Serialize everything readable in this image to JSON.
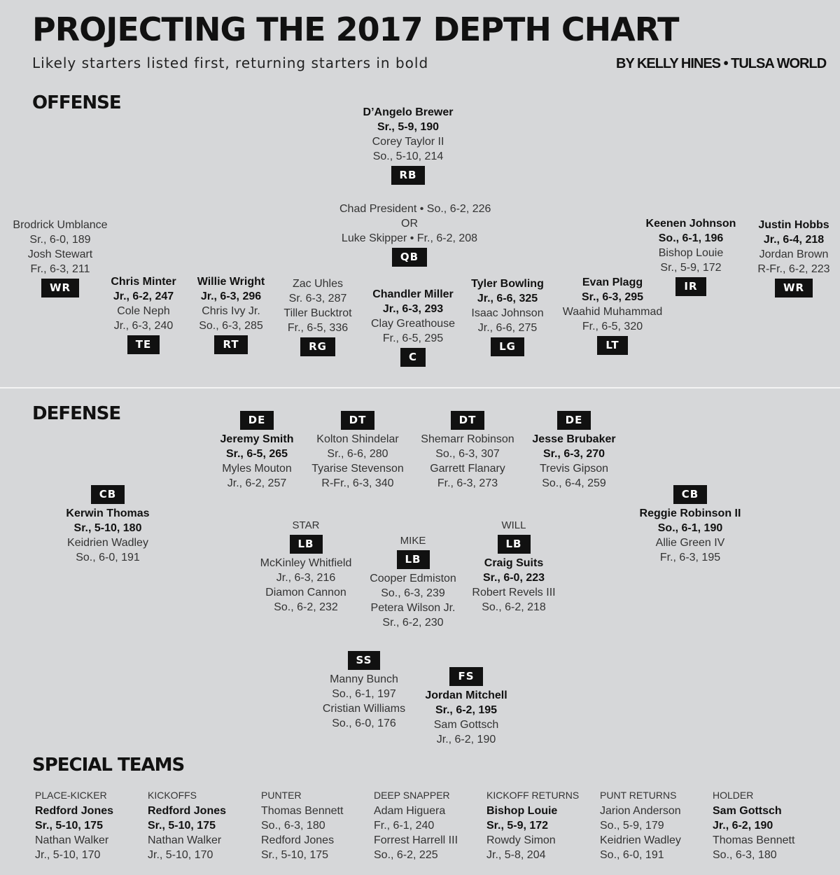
{
  "header": {
    "title": "PROJECTING THE 2017 DEPTH CHART",
    "subtitle": "Likely starters listed first, returning starters in bold",
    "byline": "BY KELLY HINES • TULSA WORLD"
  },
  "sections": {
    "offense": "OFFENSE",
    "defense": "DEFENSE",
    "special_teams": "SPECIAL TEAMS"
  },
  "offense": {
    "rb": {
      "label": "RB",
      "lines": [
        "D’Angelo Brewer",
        "Sr., 5-9, 190",
        "Corey Taylor II",
        "So., 5-10, 214"
      ],
      "bold": [
        0,
        1
      ]
    },
    "qb": {
      "label": "QB",
      "lines": [
        "Chad President • So., 6-2, 226",
        "OR",
        "Luke Skipper • Fr., 6-2, 208"
      ],
      "bold": []
    },
    "wr_left": {
      "label": "WR",
      "lines": [
        "Brodrick Umblance",
        "Sr., 6-0, 189",
        "Josh Stewart",
        "Fr., 6-3, 211"
      ],
      "bold": []
    },
    "te": {
      "label": "TE",
      "lines": [
        "Chris Minter",
        "Jr., 6-2, 247",
        "Cole Neph",
        "Jr., 6-3, 240"
      ],
      "bold": [
        0,
        1
      ]
    },
    "rt": {
      "label": "RT",
      "lines": [
        "Willie Wright",
        "Jr., 6-3, 296",
        "Chris Ivy Jr.",
        "So., 6-3, 285"
      ],
      "bold": [
        0,
        1
      ]
    },
    "rg": {
      "label": "RG",
      "lines": [
        "Zac Uhles",
        "Sr. 6-3, 287",
        "Tiller Bucktrot",
        "Fr., 6-5, 336"
      ],
      "bold": []
    },
    "c": {
      "label": "C",
      "lines": [
        "Chandler Miller",
        "Jr., 6-3, 293",
        "Clay Greathouse",
        "Fr., 6-5, 295"
      ],
      "bold": [
        0,
        1
      ]
    },
    "lg": {
      "label": "LG",
      "lines": [
        "Tyler Bowling",
        "Jr., 6-6, 325",
        "Isaac Johnson",
        "Jr., 6-6, 275"
      ],
      "bold": [
        0,
        1
      ]
    },
    "lt": {
      "label": "LT",
      "lines": [
        "Evan Plagg",
        "Sr., 6-3, 295",
        "Waahid Muhammad",
        "Fr., 6-5, 320"
      ],
      "bold": [
        0,
        1
      ]
    },
    "ir": {
      "label": "IR",
      "lines": [
        "Keenen Johnson",
        "So., 6-1, 196",
        "Bishop Louie",
        "Sr., 5-9, 172"
      ],
      "bold": [
        0,
        1
      ]
    },
    "wr_right": {
      "label": "WR",
      "lines": [
        "Justin Hobbs",
        "Jr., 6-4, 218",
        "Jordan Brown",
        "R-Fr., 6-2, 223"
      ],
      "bold": [
        0,
        1
      ]
    }
  },
  "defense": {
    "de_left": {
      "label": "DE",
      "lines": [
        "Jeremy Smith",
        "Sr., 6-5, 265",
        "Myles Mouton",
        "Jr., 6-2, 257"
      ],
      "bold": [
        0,
        1
      ]
    },
    "dt_left": {
      "label": "DT",
      "lines": [
        "Kolton Shindelar",
        "Sr., 6-6, 280",
        "Tyarise Stevenson",
        "R-Fr., 6-3, 340"
      ],
      "bold": []
    },
    "dt_right": {
      "label": "DT",
      "lines": [
        "Shemarr Robinson",
        "So., 6-3, 307",
        "Garrett Flanary",
        "Fr., 6-3, 273"
      ],
      "bold": []
    },
    "de_right": {
      "label": "DE",
      "lines": [
        "Jesse Brubaker",
        "Sr., 6-3, 270",
        "Trevis Gipson",
        "So., 6-4, 259"
      ],
      "bold": [
        0,
        1
      ]
    },
    "cb_left": {
      "label": "CB",
      "lines": [
        "Kerwin Thomas",
        "Sr., 5-10, 180",
        "Keidrien Wadley",
        "So., 6-0, 191"
      ],
      "bold": [
        0,
        1
      ]
    },
    "cb_right": {
      "label": "CB",
      "lines": [
        "Reggie Robinson II",
        "So., 6-1, 190",
        "Allie Green IV",
        "Fr., 6-3, 195"
      ],
      "bold": [
        0,
        1
      ]
    },
    "lb_star": {
      "label": "LB",
      "sublabel": "STAR",
      "lines": [
        "McKinley Whitfield",
        "Jr., 6-3, 216",
        "Diamon Cannon",
        "So., 6-2, 232"
      ],
      "bold": []
    },
    "lb_mike": {
      "label": "LB",
      "sublabel": "MIKE",
      "lines": [
        "Cooper Edmiston",
        "So., 6-3, 239",
        "Petera Wilson Jr.",
        "Sr., 6-2, 230"
      ],
      "bold": []
    },
    "lb_will": {
      "label": "LB",
      "sublabel": "WILL",
      "lines": [
        "Craig Suits",
        "Sr., 6-0, 223",
        "Robert Revels III",
        "So., 6-2, 218"
      ],
      "bold": [
        0,
        1
      ]
    },
    "ss": {
      "label": "SS",
      "lines": [
        "Manny Bunch",
        "So., 6-1, 197",
        "Cristian Williams",
        "So., 6-0, 176"
      ],
      "bold": []
    },
    "fs": {
      "label": "FS",
      "lines": [
        "Jordan Mitchell",
        "Sr., 6-2, 195",
        "Sam Gottsch",
        "Jr., 6-2, 190"
      ],
      "bold": [
        0,
        1
      ]
    }
  },
  "special_teams": [
    {
      "header": "PLACE-KICKER",
      "lines": [
        "Redford Jones",
        "Sr., 5-10, 175",
        "Nathan Walker",
        "Jr., 5-10, 170"
      ],
      "bold": [
        0,
        1
      ]
    },
    {
      "header": "KICKOFFS",
      "lines": [
        "Redford Jones",
        "Sr., 5-10, 175",
        "Nathan Walker",
        "Jr., 5-10, 170"
      ],
      "bold": [
        0,
        1
      ]
    },
    {
      "header": "PUNTER",
      "lines": [
        "Thomas Bennett",
        "So., 6-3, 180",
        "Redford Jones",
        "Sr., 5-10, 175"
      ],
      "bold": []
    },
    {
      "header": "DEEP SNAPPER",
      "lines": [
        "Adam Higuera",
        "Fr., 6-1, 240",
        "Forrest Harrell III",
        "So., 6-2, 225"
      ],
      "bold": []
    },
    {
      "header": "KICKOFF RETURNS",
      "lines": [
        "Bishop Louie",
        "Sr., 5-9, 172",
        "Rowdy Simon",
        "Jr., 5-8, 204"
      ],
      "bold": [
        0,
        1
      ]
    },
    {
      "header": "PUNT RETURNS",
      "lines": [
        "Jarion Anderson",
        "So., 5-9, 179",
        "Keidrien Wadley",
        "So., 6-0, 191"
      ],
      "bold": []
    },
    {
      "header": "HOLDER",
      "lines": [
        "Sam Gottsch",
        "Jr., 6-2, 190",
        "Thomas Bennett",
        "So., 6-3, 180"
      ],
      "bold": [
        0,
        1
      ]
    }
  ]
}
